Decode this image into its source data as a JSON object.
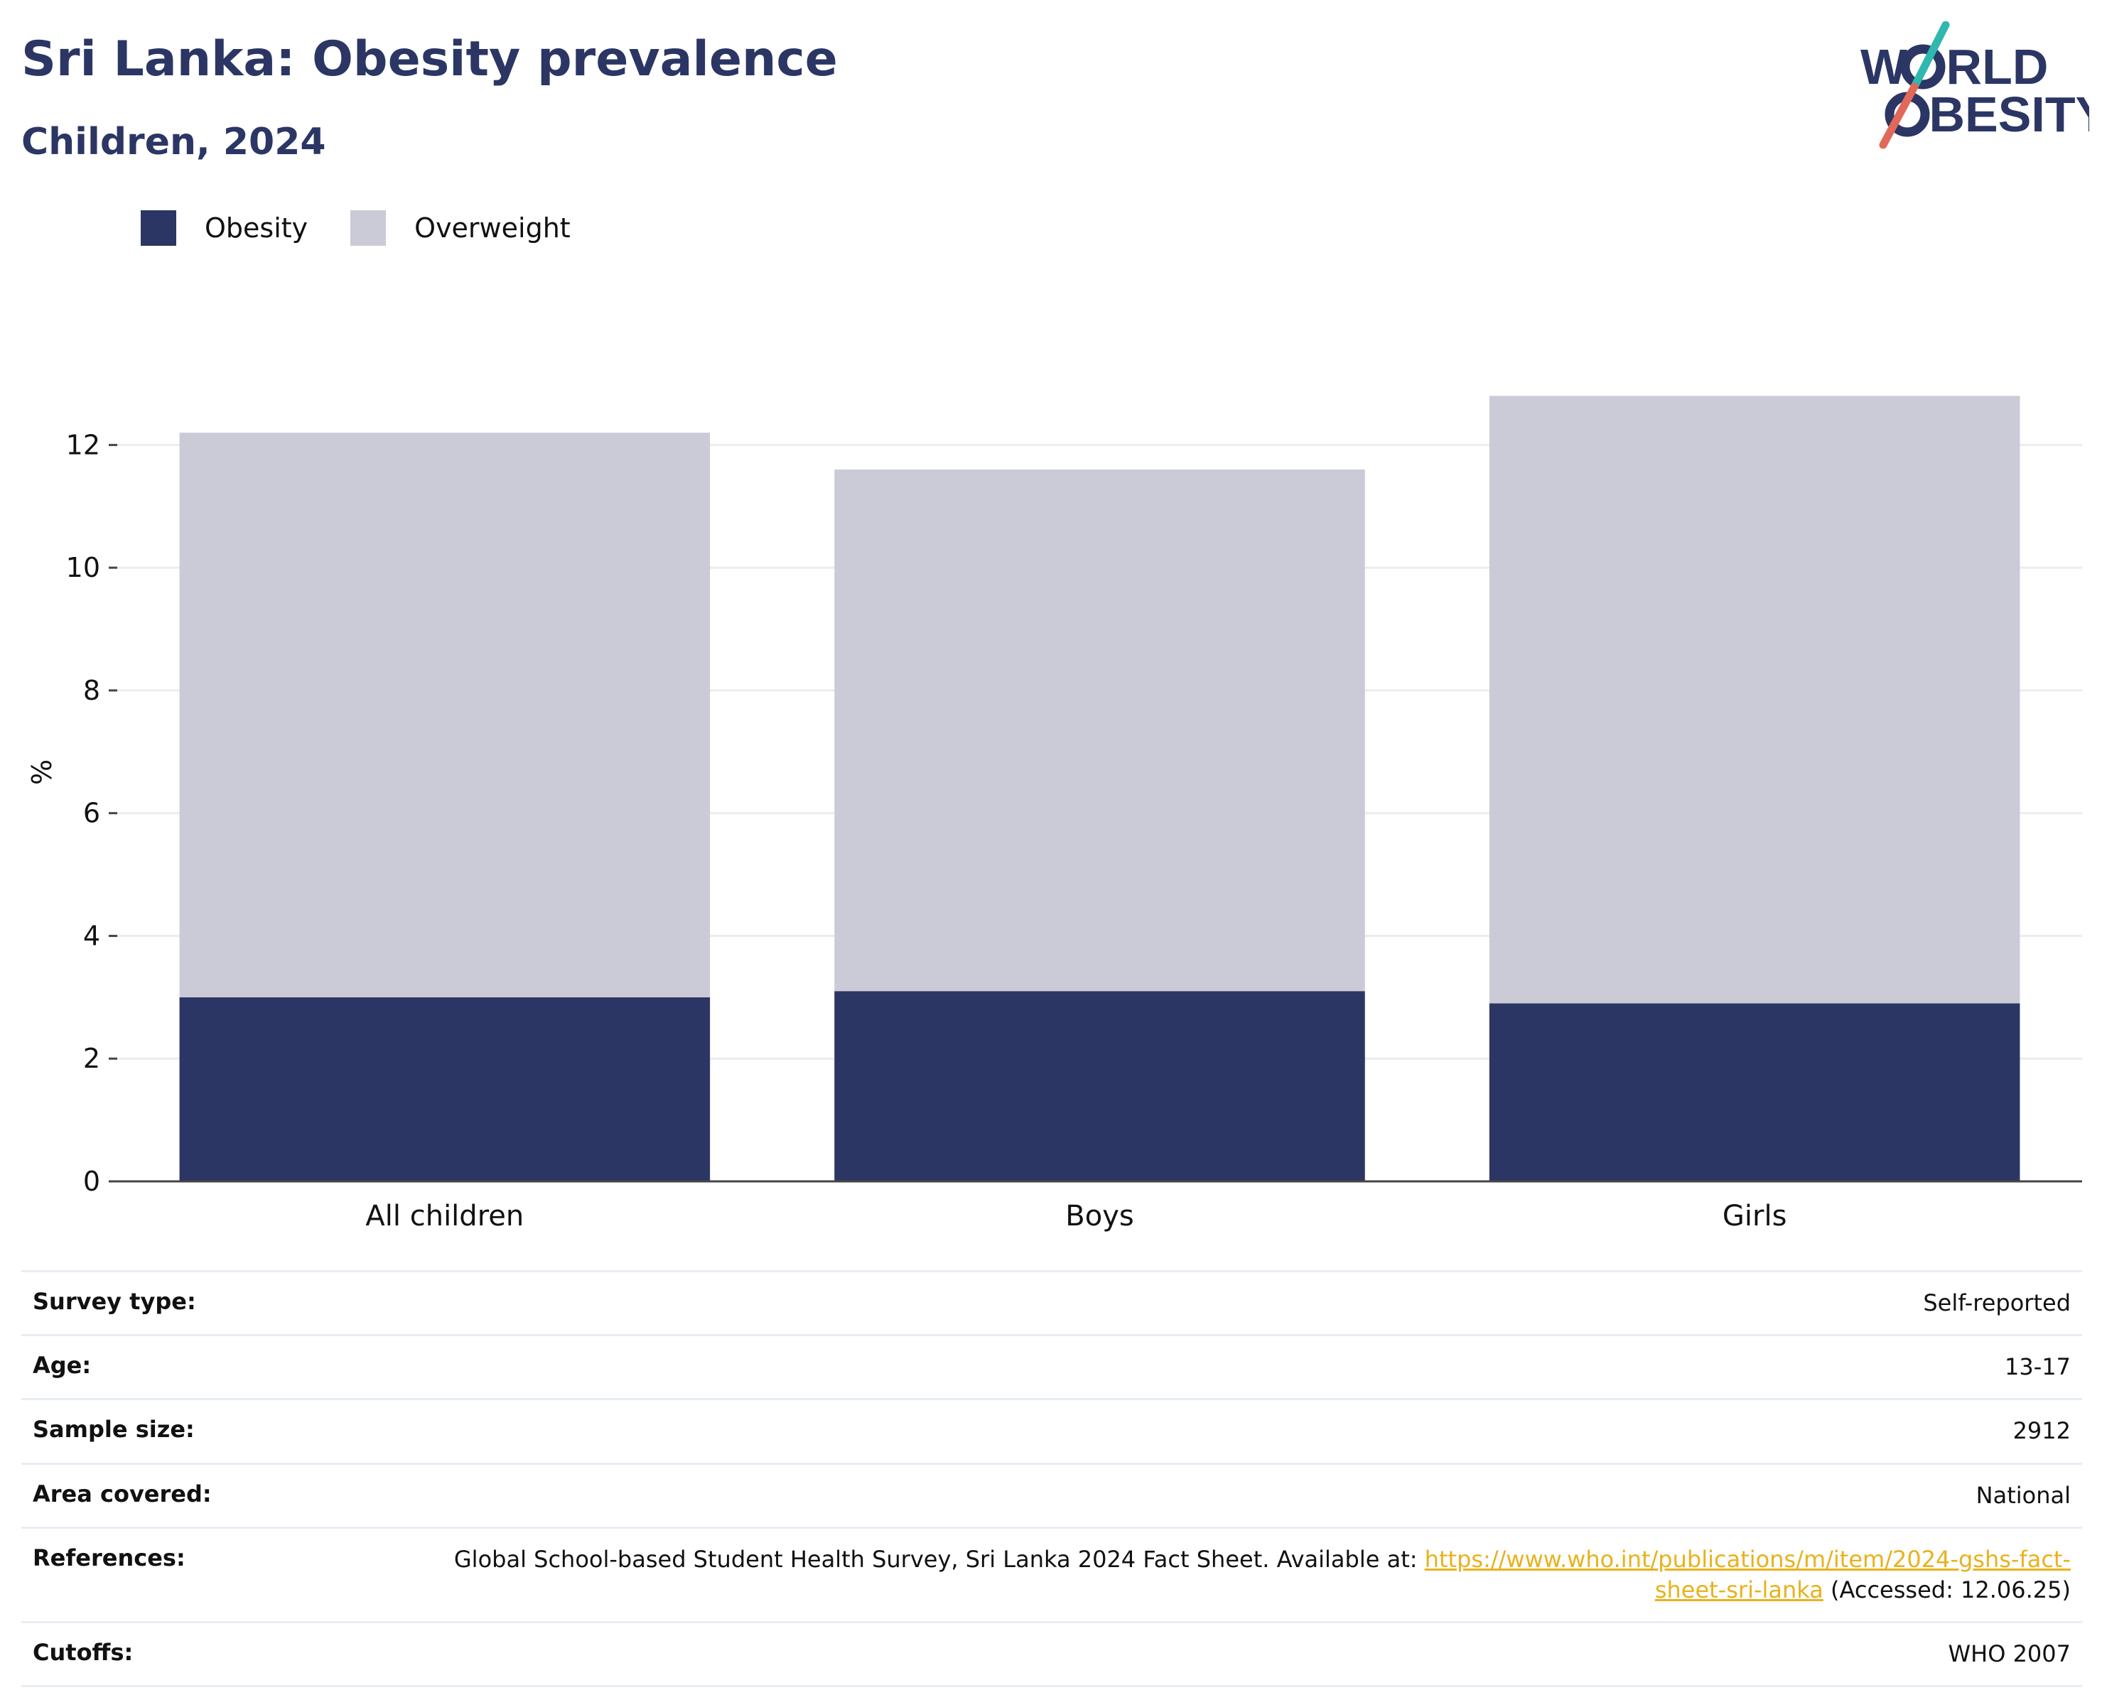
{
  "header": {
    "title": "Sri Lanka: Obesity prevalence",
    "subtitle": "Children, 2024"
  },
  "logo": {
    "line1_pre": "W",
    "line1_post": "RLD",
    "line2_pre": "O",
    "line2_post": "BESITY",
    "colors": {
      "text": "#2b3664",
      "slash_top": "#2fb7b0",
      "slash_bottom": "#e2685a"
    }
  },
  "legend": [
    {
      "label": "Obesity",
      "color": "#2b3664"
    },
    {
      "label": "Overweight",
      "color": "#cacbd6"
    }
  ],
  "chart_data": {
    "type": "bar",
    "stacked": true,
    "categories": [
      "All children",
      "Boys",
      "Girls"
    ],
    "series": [
      {
        "name": "Obesity",
        "values": [
          3.0,
          3.1,
          2.9
        ],
        "color": "#2b3664"
      },
      {
        "name": "Overweight",
        "values": [
          9.2,
          8.5,
          9.9
        ],
        "color": "#cacbd6"
      }
    ],
    "ylabel": "%",
    "ylim": [
      0,
      13
    ],
    "yticks": [
      0,
      2,
      4,
      6,
      8,
      10,
      12
    ],
    "grid": true,
    "legend_position": "top-left"
  },
  "info": {
    "rows": [
      {
        "key": "Survey type:",
        "value": "Self-reported"
      },
      {
        "key": "Age:",
        "value": "13-17"
      },
      {
        "key": "Sample size:",
        "value": "2912"
      },
      {
        "key": "Area covered:",
        "value": "National"
      },
      {
        "key": "References:",
        "value_prefix": "Global School-based Student Health Survey, Sri Lanka 2024 Fact Sheet. Available at: ",
        "link_text": "https://www.who.int/publications/m/item/2024-gshs-fact-sheet-sri-lanka",
        "value_suffix": " (Accessed: 12.06.25)"
      },
      {
        "key": "Cutoffs:",
        "value": "WHO 2007"
      }
    ]
  }
}
